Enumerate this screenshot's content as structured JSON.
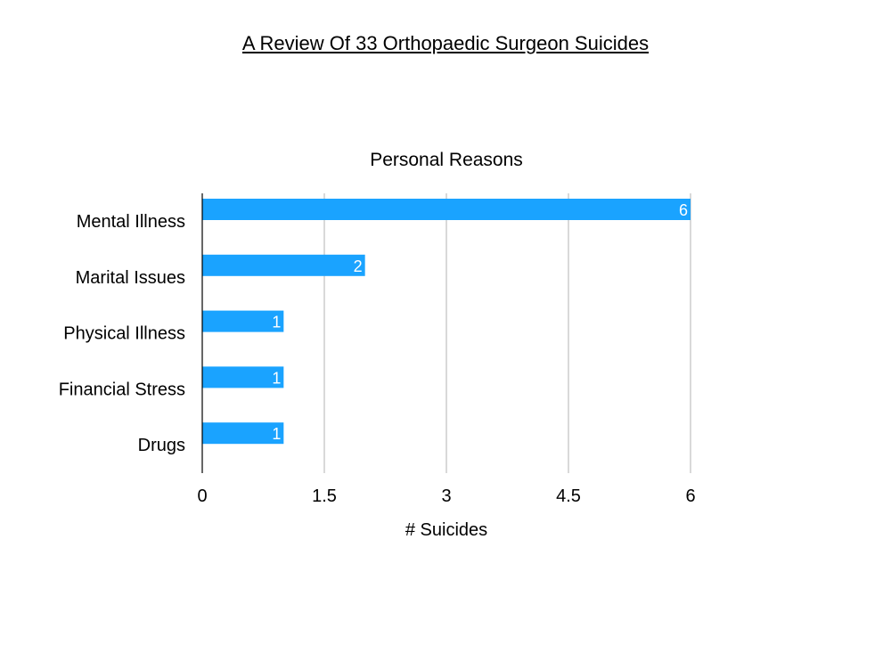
{
  "page": {
    "title": "A Review Of 33 Orthopaedic Surgeon Suicides"
  },
  "chart_data": {
    "type": "bar",
    "orientation": "horizontal",
    "title": "Personal Reasons",
    "xlabel": "# Suicides",
    "ylabel": "",
    "categories": [
      "Mental Illness",
      "Marital Issues",
      "Physical Illness",
      "Financial Stress",
      "Drugs"
    ],
    "values": [
      6,
      2,
      1,
      1,
      1
    ],
    "data_labels": [
      "6",
      "2",
      "1",
      "1",
      "1"
    ],
    "xlim": [
      0,
      6
    ],
    "xticks": [
      0,
      1.5,
      3,
      4.5,
      6
    ],
    "xtick_labels": [
      "0",
      "1.5",
      "3",
      "4.5",
      "6"
    ],
    "grid": "vertical",
    "legend": "none",
    "bar_color": "#1aa3ff"
  }
}
